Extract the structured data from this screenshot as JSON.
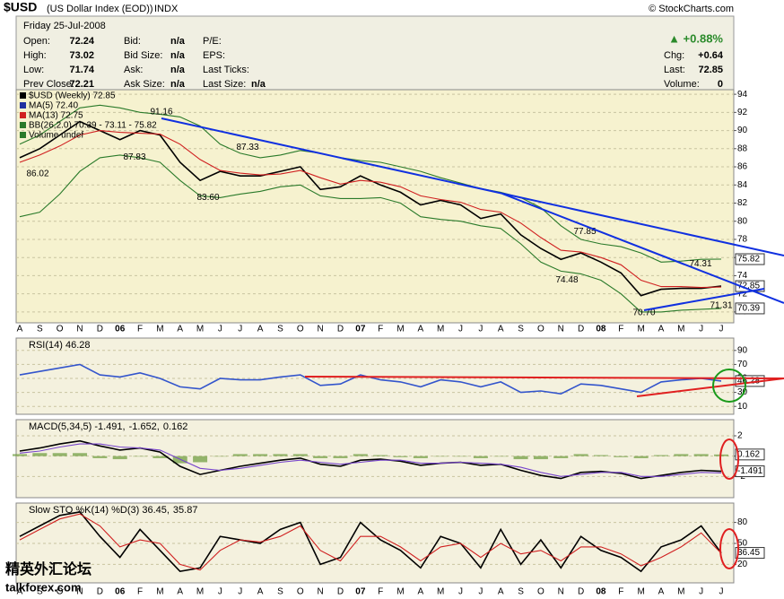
{
  "header": {
    "symbol": "$USD",
    "name": "(US Dollar Index (EOD))",
    "exchange": "INDX",
    "source": "© StockCharts.com",
    "date": "Friday   25-Jul-2008",
    "col1": [
      {
        "label": "Open:",
        "value": 72.24
      },
      {
        "label": "High:",
        "value": 73.02
      },
      {
        "label": "Low:",
        "value": 71.74
      },
      {
        "label": "Prev Close:",
        "value": 72.21
      }
    ],
    "col2": [
      {
        "label": "Bid:",
        "value": "n/a"
      },
      {
        "label": "Bid Size:",
        "value": "n/a"
      },
      {
        "label": "Ask:",
        "value": "n/a"
      },
      {
        "label": "Ask Size:",
        "value": "n/a"
      }
    ],
    "col3": [
      "P/E:",
      "EPS:",
      "Last Ticks:",
      "Last Size:"
    ],
    "col3_last_value": "n/a",
    "change_pct": "▲ +0.88%",
    "right": [
      {
        "label": "Chg:",
        "value": "+0.64"
      },
      {
        "label": "Last:",
        "value": 72.85
      },
      {
        "label": "Volume:",
        "value": 0
      }
    ]
  },
  "watermark": {
    "cn": "精英外汇论坛",
    "site": "talkforex.com"
  },
  "chart_data": [
    {
      "type": "line",
      "panel": "price",
      "categories": [
        "A",
        "S",
        "O",
        "N",
        "D",
        "06",
        "F",
        "M",
        "A",
        "M",
        "J",
        "J",
        "A",
        "S",
        "O",
        "N",
        "D",
        "07",
        "F",
        "M",
        "A",
        "M",
        "J",
        "J",
        "A",
        "S",
        "O",
        "N",
        "D",
        "08",
        "F",
        "M",
        "A",
        "M",
        "J",
        "J"
      ],
      "ylim": [
        69,
        95
      ],
      "yticks": [
        70,
        72,
        74,
        76,
        78,
        80,
        82,
        84,
        86,
        88,
        90,
        92,
        94
      ],
      "grid": true,
      "series": [
        {
          "name": "$USD (Weekly) 72.85",
          "color": "#000000",
          "values": [
            87,
            88,
            89.5,
            91,
            90,
            89,
            90,
            89.5,
            86.5,
            84.5,
            85.5,
            85,
            85,
            85.5,
            86,
            83.5,
            83.8,
            85,
            84,
            83.2,
            81.8,
            82.3,
            81.8,
            80.3,
            80.8,
            78.5,
            77,
            75.8,
            76.5,
            75.5,
            74.3,
            71.8,
            72.5,
            72.6,
            72.6,
            72.85
          ]
        },
        {
          "name": "MA(13) 72.75",
          "color": "#d02020",
          "values": [
            86.5,
            87.3,
            88.3,
            89.5,
            90,
            89.8,
            89.7,
            89.6,
            88.5,
            86.8,
            85.6,
            85.3,
            85.1,
            85.2,
            85.6,
            84.8,
            84.1,
            84.5,
            84.3,
            83.8,
            82.8,
            82.4,
            82.1,
            81.3,
            81,
            79.8,
            78.2,
            76.8,
            76.6,
            76,
            75.2,
            73.5,
            72.8,
            72.8,
            72.7,
            72.75
          ]
        },
        {
          "name": "BB(26,2.0) 70.39 - 73.11 - 75.82",
          "color": "#2a7a2a",
          "values": [
            88.5,
            89.5,
            91,
            92.5,
            92.8,
            92.5,
            92,
            91.8,
            91.5,
            90.5,
            88.5,
            87.5,
            87,
            87.3,
            87.8,
            87.5,
            87,
            86.7,
            86.5,
            86,
            85.5,
            84.8,
            84.2,
            83.6,
            83.2,
            82.6,
            81.5,
            79.5,
            78,
            77.5,
            77.2,
            76.5,
            75.5,
            75.6,
            75.8,
            75.82
          ]
        },
        {
          "name": "BB lower",
          "color": "#2a7a2a",
          "values": [
            80.5,
            81,
            83,
            85.5,
            87,
            87.3,
            87,
            86.5,
            84.5,
            82.8,
            82.6,
            83,
            83.3,
            83.8,
            84,
            82.8,
            82.5,
            82.5,
            82.6,
            82,
            80.5,
            80.2,
            80,
            79.5,
            79.2,
            77.5,
            75.5,
            74.5,
            74.2,
            73.5,
            72,
            70,
            70,
            70.2,
            70.3,
            70.39
          ]
        }
      ],
      "notes": [
        {
          "text": "MA(5) 72.40",
          "color": "#2030a0"
        },
        {
          "text": "Volume undef",
          "color": "#2a7a2a"
        }
      ],
      "annotations": [
        {
          "value": 91.16,
          "label": "91.16"
        },
        {
          "value": 87.33,
          "label": "87.33"
        },
        {
          "value": 86.02,
          "label": "86.02"
        },
        {
          "value": 87.83,
          "label": "87.83"
        },
        {
          "value": 83.6,
          "label": "83.60"
        },
        {
          "value": 77.85,
          "label": "77.85"
        },
        {
          "value": 74.48,
          "label": "74.48"
        },
        {
          "value": 74.31,
          "label": "74.31"
        },
        {
          "value": 70.7,
          "label": "70.70"
        },
        {
          "value": 71.31,
          "label": "71.31"
        }
      ],
      "last_labels": [
        72.85,
        75.82,
        70.39
      ]
    },
    {
      "type": "line",
      "panel": "rsi",
      "title_parts": [
        {
          "text": "RSI(14) 46.28",
          "color": "#000000"
        }
      ],
      "ylim": [
        0,
        100
      ],
      "yticks": [
        10,
        30,
        50,
        70,
        90
      ],
      "grid": true,
      "series": [
        {
          "name": "RSI(14)",
          "color": "#3355cc",
          "values": [
            55,
            60,
            65,
            70,
            55,
            52,
            58,
            50,
            38,
            35,
            50,
            48,
            48,
            52,
            55,
            40,
            42,
            55,
            48,
            45,
            38,
            48,
            45,
            38,
            45,
            30,
            32,
            28,
            42,
            40,
            35,
            30,
            45,
            48,
            50,
            46.28
          ]
        }
      ],
      "last_labels": [
        46.28
      ]
    },
    {
      "type": "line",
      "panel": "macd",
      "title_parts": [
        {
          "text": "MACD(5,34,5) -1.491,",
          "color": "#000000"
        },
        {
          "text": "-1.652,",
          "color": "#7744cc"
        },
        {
          "text": "0.162",
          "color": "#6a9a3a"
        }
      ],
      "ylim": [
        -4,
        3.5
      ],
      "yticks": [
        -2,
        0,
        2
      ],
      "grid": true,
      "series": [
        {
          "name": "MACD",
          "color": "#000000",
          "values": [
            0.5,
            0.8,
            1.2,
            1.5,
            1.0,
            0.6,
            0.8,
            0.4,
            -1.0,
            -1.8,
            -1.4,
            -1.0,
            -0.7,
            -0.4,
            -0.2,
            -0.8,
            -1.0,
            -0.4,
            -0.3,
            -0.5,
            -0.9,
            -0.7,
            -0.6,
            -0.9,
            -0.8,
            -1.4,
            -1.9,
            -2.2,
            -1.6,
            -1.5,
            -1.7,
            -2.2,
            -1.9,
            -1.6,
            -1.4,
            -1.491
          ]
        },
        {
          "name": "Signal",
          "color": "#7744cc",
          "values": [
            0.3,
            0.5,
            0.9,
            1.2,
            1.2,
            0.9,
            0.8,
            0.6,
            -0.3,
            -1.2,
            -1.4,
            -1.2,
            -0.9,
            -0.6,
            -0.4,
            -0.6,
            -0.8,
            -0.6,
            -0.4,
            -0.4,
            -0.7,
            -0.7,
            -0.6,
            -0.7,
            -0.8,
            -1.1,
            -1.6,
            -2.0,
            -1.8,
            -1.6,
            -1.6,
            -2.0,
            -2.0,
            -1.8,
            -1.6,
            -1.652
          ]
        }
      ],
      "histogram": {
        "color": "#6a9a3a",
        "values": [
          0.2,
          0.3,
          0.3,
          0.3,
          -0.2,
          -0.3,
          0,
          -0.2,
          -0.7,
          -0.6,
          0,
          0.2,
          0.2,
          0.2,
          0.2,
          -0.2,
          -0.2,
          0.2,
          0.1,
          -0.1,
          -0.2,
          0,
          0,
          -0.2,
          0,
          -0.3,
          -0.3,
          -0.2,
          0.2,
          0.1,
          -0.1,
          -0.2,
          0.1,
          0.2,
          0.2,
          0.162
        ]
      },
      "last_labels": [
        0.162,
        -1.491
      ]
    },
    {
      "type": "line",
      "panel": "sto",
      "title_parts": [
        {
          "text": "Slow STO %K(14) %D(3) 36.45,",
          "color": "#000000"
        },
        {
          "text": "35.87",
          "color": "#d02020"
        }
      ],
      "ylim": [
        0,
        100
      ],
      "yticks": [
        20,
        50,
        80
      ],
      "grid": true,
      "series": [
        {
          "name": "%K",
          "color": "#000000",
          "values": [
            60,
            75,
            90,
            95,
            60,
            30,
            70,
            40,
            10,
            15,
            60,
            55,
            50,
            70,
            80,
            20,
            30,
            80,
            55,
            40,
            15,
            60,
            50,
            15,
            70,
            20,
            55,
            15,
            60,
            40,
            30,
            10,
            45,
            55,
            75,
            36.45
          ]
        },
        {
          "name": "%D",
          "color": "#d02020",
          "values": [
            55,
            70,
            85,
            92,
            75,
            45,
            55,
            50,
            20,
            12,
            40,
            55,
            52,
            60,
            75,
            40,
            25,
            60,
            60,
            45,
            25,
            45,
            50,
            30,
            50,
            35,
            40,
            25,
            45,
            45,
            35,
            18,
            30,
            45,
            65,
            35.87
          ]
        }
      ],
      "last_labels": [
        36.45
      ]
    }
  ]
}
